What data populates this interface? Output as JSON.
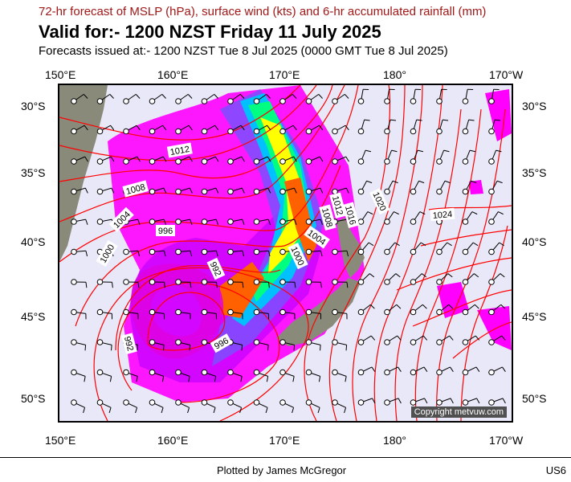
{
  "header": {
    "title_line1": "72-hr forecast of MSLP (hPa), surface wind (kts) and 6-hr accumulated rainfall (mm)",
    "title_line2": "Valid for:- 1200 NZST Friday 11 July 2025",
    "title_line3": "Forecasts issued at:- 1200 NZST Tue 8 Jul 2025 (0000 GMT Tue 8 Jul 2025)"
  },
  "axes": {
    "longitude_labels": [
      "150°E",
      "160°E",
      "170°E",
      "180°",
      "170°W"
    ],
    "latitude_labels": [
      "30°S",
      "35°S",
      "40°S",
      "45°S",
      "50°S"
    ]
  },
  "isobar_labels": [
    "1012",
    "1008",
    "1004",
    "1000",
    "996",
    "992",
    "1000",
    "1004",
    "1008",
    "1012",
    "1016",
    "1020",
    "1024",
    "996",
    "992"
  ],
  "map": {
    "ocean_color": "#e8e8f8",
    "land_color": "#8a8a7a",
    "isobar_color": "#ff0000",
    "rain_colors": [
      "#ff00ff",
      "#c000ff",
      "#7a50ff",
      "#00c0ff",
      "#00ff80",
      "#ffff00",
      "#ff6000"
    ]
  },
  "copyright": "Copyright metvuw.com",
  "footer": {
    "credit": "Plotted by James McGregor",
    "code": "US6"
  }
}
